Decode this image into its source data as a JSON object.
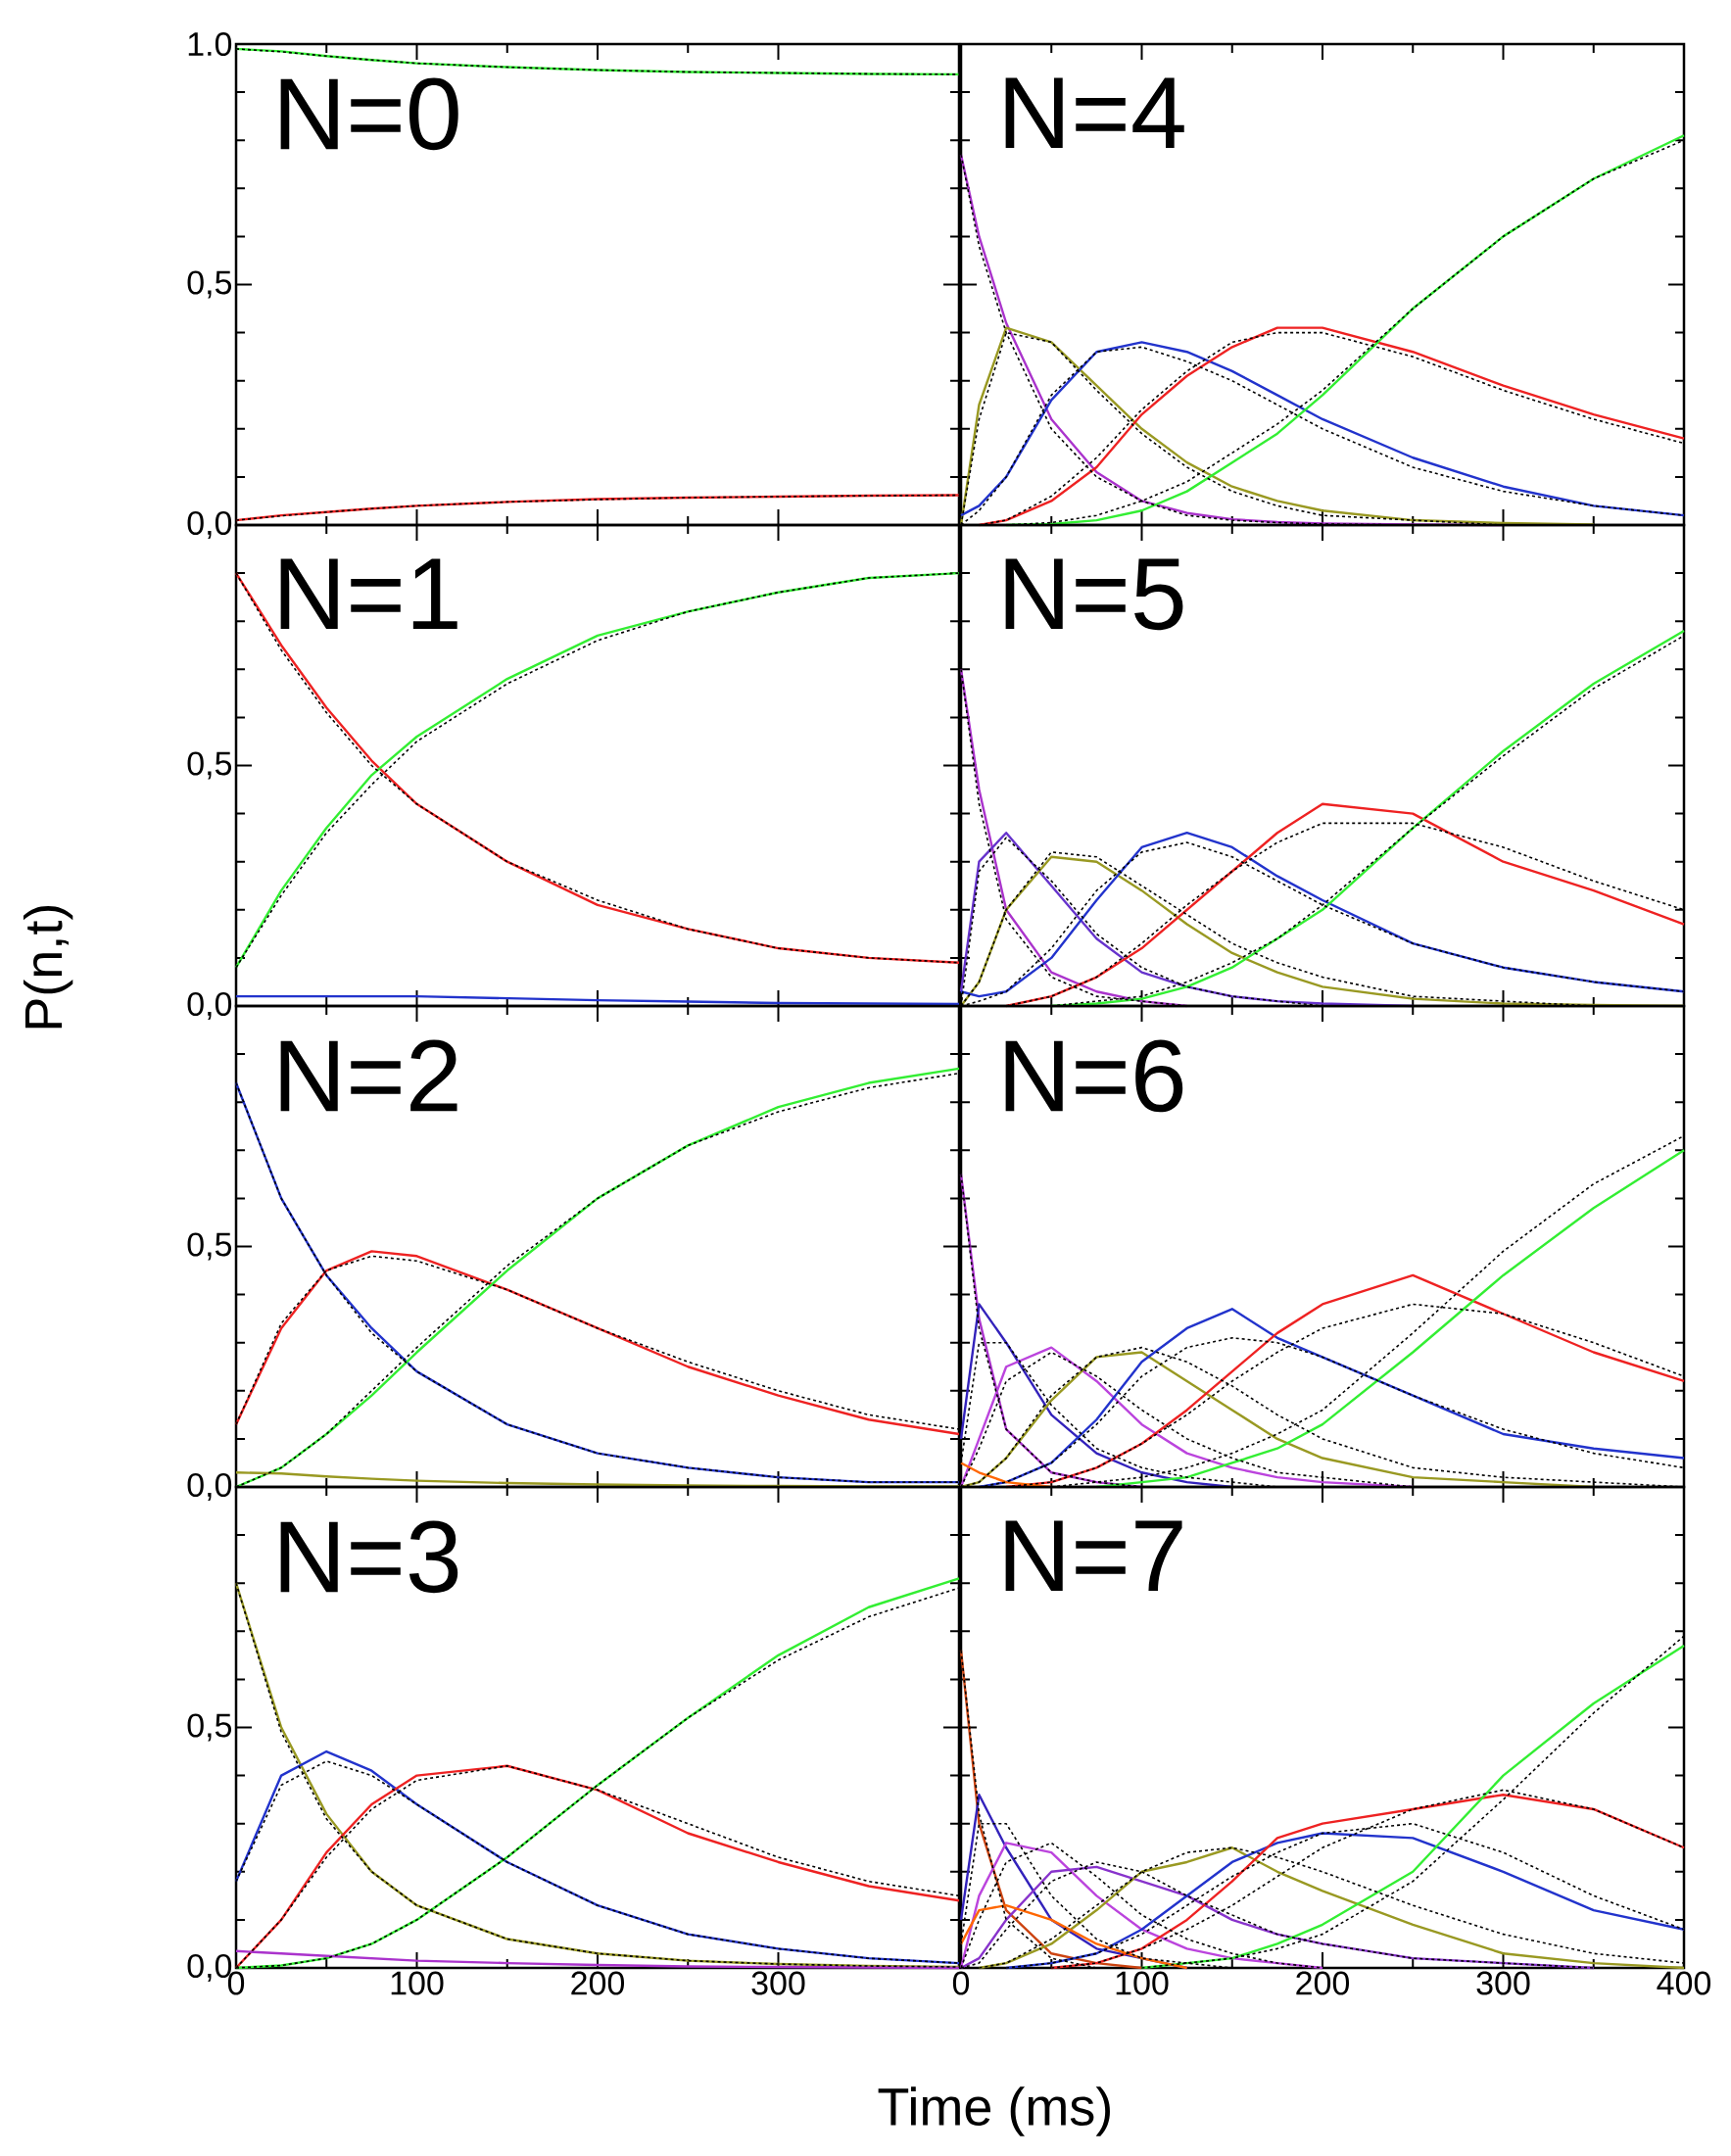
{
  "chart_data": [
    {
      "type": "line",
      "annotations": [
        "N=0"
      ],
      "x": [
        0,
        25,
        50,
        75,
        100,
        150,
        200,
        250,
        300,
        350,
        400
      ],
      "xlim": [
        0,
        400
      ],
      "ylim": [
        0,
        1
      ],
      "xticks": [
        0,
        100,
        200,
        300
      ],
      "yticks": [
        {
          "value": 0,
          "label": "0,0"
        },
        {
          "value": 0.5,
          "label": "0,5"
        },
        {
          "value": 1,
          "label": "1.0"
        }
      ],
      "tick_labels": "y",
      "series": [
        {
          "color": "#33ee33",
          "values": [
            0.99,
            0.985,
            0.975,
            0.967,
            0.96,
            0.952,
            0.946,
            0.942,
            0.94,
            0.938,
            0.937
          ]
        },
        {
          "color": "#ee2222",
          "values": [
            0.01,
            0.02,
            0.027,
            0.034,
            0.04,
            0.048,
            0.054,
            0.057,
            0.059,
            0.061,
            0.062
          ]
        },
        {
          "color": "#000000",
          "line_style": "dashed",
          "values": [
            0.99,
            0.984,
            0.975,
            0.967,
            0.96,
            0.952,
            0.946,
            0.942,
            0.94,
            0.938,
            0.937
          ]
        },
        {
          "color": "#000000",
          "line_style": "dashed",
          "values": [
            0.01,
            0.019,
            0.027,
            0.034,
            0.04,
            0.048,
            0.053,
            0.057,
            0.059,
            0.061,
            0.062
          ]
        }
      ]
    },
    {
      "type": "line",
      "annotations": [
        "N=4"
      ],
      "x": [
        0,
        10,
        25,
        50,
        75,
        100,
        125,
        150,
        175,
        200,
        250,
        300,
        350,
        400
      ],
      "xlim": [
        0,
        400
      ],
      "ylim": [
        0,
        1
      ],
      "xticks": [
        0,
        100,
        200,
        300,
        400
      ],
      "yticks": [
        {
          "value": 0,
          "label": null
        },
        {
          "value": 0.5,
          "label": null
        },
        {
          "value": 1,
          "label": null
        }
      ],
      "tick_labels": false,
      "series": [
        {
          "color": "#aa33cc",
          "values": [
            0.77,
            0.6,
            0.42,
            0.22,
            0.11,
            0.05,
            0.025,
            0.012,
            0.006,
            0.003,
            0.001,
            0,
            null,
            null
          ]
        },
        {
          "color": "#999922",
          "values": [
            0,
            0.25,
            0.41,
            0.38,
            0.29,
            0.2,
            0.13,
            0.08,
            0.05,
            0.03,
            0.01,
            0.004,
            0.001,
            null
          ]
        },
        {
          "color": "#2233cc",
          "values": [
            0.02,
            0.04,
            0.1,
            0.26,
            0.36,
            0.38,
            0.36,
            0.32,
            0.27,
            0.22,
            0.14,
            0.08,
            0.04,
            0.02
          ]
        },
        {
          "color": "#ee2222",
          "values": [
            null,
            0,
            0.01,
            0.05,
            0.12,
            0.23,
            0.31,
            0.37,
            0.41,
            0.41,
            0.36,
            0.29,
            0.23,
            0.18
          ]
        },
        {
          "color": "#33ee33",
          "values": [
            null,
            null,
            0,
            0.002,
            0.01,
            0.03,
            0.07,
            0.13,
            0.19,
            0.27,
            0.45,
            0.6,
            0.72,
            0.81
          ]
        },
        {
          "color": "#000000",
          "line_style": "dashed",
          "values": [
            0.77,
            0.58,
            0.4,
            0.2,
            0.1,
            0.05,
            0.02,
            0.01,
            0.005,
            0.002,
            0,
            null,
            null,
            null
          ]
        },
        {
          "color": "#000000",
          "line_style": "dashed",
          "values": [
            0,
            0.22,
            0.4,
            0.38,
            0.28,
            0.19,
            0.12,
            0.07,
            0.04,
            0.02,
            0.01,
            0,
            null,
            null
          ]
        },
        {
          "color": "#000000",
          "line_style": "dashed",
          "values": [
            0,
            0.03,
            0.1,
            0.27,
            0.36,
            0.37,
            0.34,
            0.3,
            0.25,
            0.2,
            0.12,
            0.07,
            0.04,
            0.02
          ]
        },
        {
          "color": "#000000",
          "line_style": "dashed",
          "values": [
            null,
            0,
            0.01,
            0.06,
            0.14,
            0.24,
            0.32,
            0.38,
            0.4,
            0.4,
            0.35,
            0.28,
            0.22,
            0.17
          ]
        },
        {
          "color": "#000000",
          "line_style": "dashed",
          "values": [
            null,
            null,
            0,
            0.005,
            0.02,
            0.05,
            0.09,
            0.15,
            0.21,
            0.28,
            0.45,
            0.6,
            0.72,
            0.8
          ]
        }
      ]
    },
    {
      "type": "line",
      "annotations": [
        "N=1"
      ],
      "x": [
        0,
        25,
        50,
        75,
        100,
        150,
        200,
        250,
        300,
        350,
        400
      ],
      "xlim": [
        0,
        400
      ],
      "ylim": [
        0,
        1
      ],
      "xticks": [
        0,
        100,
        200,
        300
      ],
      "yticks": [
        {
          "value": 0,
          "label": "0,0"
        },
        {
          "value": 0.5,
          "label": "0,5"
        },
        {
          "value": 1,
          "label": null
        }
      ],
      "tick_labels": "y",
      "ylabel": "P(n,t)",
      "series": [
        {
          "color": "#ee2222",
          "values": [
            0.9,
            0.75,
            0.62,
            0.51,
            0.42,
            0.3,
            0.21,
            0.16,
            0.12,
            0.1,
            0.09
          ]
        },
        {
          "color": "#33ee33",
          "values": [
            0.08,
            0.24,
            0.37,
            0.48,
            0.56,
            0.68,
            0.77,
            0.82,
            0.86,
            0.89,
            0.9
          ]
        },
        {
          "color": "#2233cc",
          "values": [
            0.02,
            0.02,
            0.02,
            0.02,
            0.02,
            0.016,
            0.012,
            0.009,
            0.006,
            0.005,
            0.004
          ]
        },
        {
          "color": "#000000",
          "line_style": "dashed",
          "values": [
            0.9,
            0.74,
            0.61,
            0.5,
            0.42,
            0.3,
            0.22,
            0.16,
            0.12,
            0.1,
            0.09
          ]
        },
        {
          "color": "#000000",
          "line_style": "dashed",
          "values": [
            0.08,
            0.23,
            0.36,
            0.46,
            0.55,
            0.67,
            0.76,
            0.82,
            0.86,
            0.89,
            0.9
          ]
        }
      ]
    },
    {
      "type": "line",
      "annotations": [
        "N=5"
      ],
      "x": [
        0,
        10,
        25,
        50,
        75,
        100,
        125,
        150,
        175,
        200,
        250,
        300,
        350,
        400
      ],
      "xlim": [
        0,
        400
      ],
      "ylim": [
        0,
        1
      ],
      "xticks": [
        0,
        100,
        200,
        300,
        400
      ],
      "yticks": [
        {
          "value": 0,
          "label": null
        },
        {
          "value": 0.5,
          "label": null
        },
        {
          "value": 1,
          "label": null
        }
      ],
      "tick_labels": false,
      "series": [
        {
          "color": "#aa33cc",
          "values": [
            0.7,
            0.45,
            0.2,
            0.07,
            0.03,
            0.01,
            0,
            null,
            null,
            null,
            null,
            null,
            null,
            null
          ]
        },
        {
          "color": "#6633cc",
          "values": [
            0.03,
            0.3,
            0.36,
            0.25,
            0.14,
            0.07,
            0.04,
            0.02,
            0.01,
            0.005,
            0,
            null,
            null,
            null
          ]
        },
        {
          "color": "#999922",
          "values": [
            0,
            0.05,
            0.2,
            0.31,
            0.3,
            0.24,
            0.17,
            0.11,
            0.07,
            0.04,
            0.015,
            0.005,
            0.002,
            0
          ]
        },
        {
          "color": "#2233cc",
          "values": [
            0.03,
            0.02,
            0.03,
            0.1,
            0.22,
            0.33,
            0.36,
            0.33,
            0.27,
            0.22,
            0.13,
            0.08,
            0.05,
            0.03
          ]
        },
        {
          "color": "#ee2222",
          "values": [
            null,
            null,
            0,
            0.02,
            0.06,
            0.12,
            0.2,
            0.28,
            0.36,
            0.42,
            0.4,
            0.3,
            0.24,
            0.17
          ]
        },
        {
          "color": "#33ee33",
          "values": [
            null,
            null,
            null,
            0,
            0.005,
            0.015,
            0.04,
            0.08,
            0.14,
            0.2,
            0.37,
            0.53,
            0.67,
            0.78
          ]
        },
        {
          "color": "#000000",
          "line_style": "dashed",
          "values": [
            0.7,
            0.42,
            0.18,
            0.06,
            0.02,
            0.01,
            0,
            null,
            null,
            null,
            null,
            null,
            null,
            null
          ]
        },
        {
          "color": "#000000",
          "line_style": "dashed",
          "values": [
            0,
            0.28,
            0.35,
            0.26,
            0.15,
            0.08,
            0.04,
            0.02,
            0.01,
            0,
            null,
            null,
            null,
            null
          ]
        },
        {
          "color": "#000000",
          "line_style": "dashed",
          "values": [
            0,
            0.05,
            0.2,
            0.32,
            0.31,
            0.25,
            0.19,
            0.13,
            0.09,
            0.06,
            0.02,
            0.01,
            0,
            null
          ]
        },
        {
          "color": "#000000",
          "line_style": "dashed",
          "values": [
            0,
            0.01,
            0.03,
            0.12,
            0.24,
            0.32,
            0.34,
            0.31,
            0.26,
            0.21,
            0.13,
            0.08,
            0.05,
            0.03
          ]
        },
        {
          "color": "#000000",
          "line_style": "dashed",
          "values": [
            null,
            null,
            0,
            0.02,
            0.06,
            0.13,
            0.21,
            0.28,
            0.34,
            0.38,
            0.38,
            0.33,
            0.26,
            0.2
          ]
        },
        {
          "color": "#000000",
          "line_style": "dashed",
          "values": [
            null,
            null,
            null,
            0,
            0.01,
            0.02,
            0.05,
            0.09,
            0.14,
            0.21,
            0.37,
            0.52,
            0.66,
            0.77
          ]
        }
      ]
    },
    {
      "type": "line",
      "annotations": [
        "N=2"
      ],
      "x": [
        0,
        25,
        50,
        75,
        100,
        150,
        200,
        250,
        300,
        350,
        400
      ],
      "xlim": [
        0,
        400
      ],
      "ylim": [
        0,
        1
      ],
      "xticks": [
        0,
        100,
        200,
        300
      ],
      "yticks": [
        {
          "value": 0,
          "label": "0,0"
        },
        {
          "value": 0.5,
          "label": "0,5"
        },
        {
          "value": 1,
          "label": null
        }
      ],
      "tick_labels": "y",
      "series": [
        {
          "color": "#2233cc",
          "values": [
            0.84,
            0.6,
            0.44,
            0.33,
            0.24,
            0.13,
            0.07,
            0.04,
            0.02,
            0.01,
            0.01
          ]
        },
        {
          "color": "#ee2222",
          "values": [
            0.13,
            0.33,
            0.45,
            0.49,
            0.48,
            0.41,
            0.33,
            0.25,
            0.19,
            0.14,
            0.11
          ]
        },
        {
          "color": "#33ee33",
          "values": [
            0,
            0.04,
            0.11,
            0.19,
            0.28,
            0.45,
            0.6,
            0.71,
            0.79,
            0.84,
            0.87
          ]
        },
        {
          "color": "#999922",
          "values": [
            0.03,
            0.028,
            0.022,
            0.017,
            0.013,
            0.008,
            0.005,
            0.003,
            0.002,
            0.001,
            0.001
          ]
        },
        {
          "color": "#000000",
          "line_style": "dashed",
          "values": [
            0.84,
            0.6,
            0.44,
            0.32,
            0.24,
            0.13,
            0.07,
            0.04,
            0.02,
            0.01,
            0.01
          ]
        },
        {
          "color": "#000000",
          "line_style": "dashed",
          "values": [
            0.13,
            0.34,
            0.45,
            0.48,
            0.47,
            0.41,
            0.33,
            0.26,
            0.2,
            0.15,
            0.12
          ]
        },
        {
          "color": "#000000",
          "line_style": "dashed",
          "values": [
            0,
            0.04,
            0.11,
            0.2,
            0.29,
            0.46,
            0.6,
            0.71,
            0.78,
            0.83,
            0.86
          ]
        }
      ]
    },
    {
      "type": "line",
      "annotations": [
        "N=6"
      ],
      "x": [
        0,
        10,
        25,
        50,
        75,
        100,
        125,
        150,
        175,
        200,
        250,
        300,
        350,
        400
      ],
      "xlim": [
        0,
        400
      ],
      "ylim": [
        0,
        1
      ],
      "xticks": [
        0,
        100,
        200,
        300,
        400
      ],
      "yticks": [
        {
          "value": 0,
          "label": null
        },
        {
          "value": 0.5,
          "label": null
        },
        {
          "value": 1,
          "label": null
        }
      ],
      "tick_labels": false,
      "series": [
        {
          "color": "#aa33cc",
          "values": [
            0.65,
            0.35,
            0.12,
            0.03,
            0.01,
            0,
            null,
            null,
            null,
            null,
            null,
            null,
            null,
            null
          ]
        },
        {
          "color": "#3322bb",
          "values": [
            0.1,
            0.38,
            0.3,
            0.15,
            0.07,
            0.03,
            0.01,
            0,
            null,
            null,
            null,
            null,
            null,
            null
          ]
        },
        {
          "color": "#bb44dd",
          "values": [
            0,
            0.1,
            0.25,
            0.29,
            0.22,
            0.13,
            0.07,
            0.04,
            0.02,
            0.01,
            0,
            null,
            null,
            null
          ]
        },
        {
          "color": "#999922",
          "values": [
            0,
            0.01,
            0.06,
            0.18,
            0.27,
            0.28,
            0.22,
            0.16,
            0.1,
            0.06,
            0.02,
            0.01,
            0,
            null
          ]
        },
        {
          "color": "#2233cc",
          "values": [
            null,
            0,
            0.01,
            0.05,
            0.14,
            0.26,
            0.33,
            0.37,
            0.31,
            0.27,
            0.19,
            0.11,
            0.08,
            0.06
          ]
        },
        {
          "color": "#ee2222",
          "values": [
            null,
            null,
            0,
            0.01,
            0.04,
            0.09,
            0.16,
            0.24,
            0.32,
            0.38,
            0.44,
            0.36,
            0.28,
            0.22
          ]
        },
        {
          "color": "#33ee33",
          "values": [
            null,
            null,
            null,
            null,
            0,
            0.01,
            0.02,
            0.05,
            0.08,
            0.13,
            0.28,
            0.44,
            0.58,
            0.7
          ]
        },
        {
          "color": "#ff6600",
          "values": [
            0.05,
            0.03,
            0.01,
            0,
            null,
            null,
            null,
            null,
            null,
            null,
            null,
            null,
            null,
            null
          ]
        },
        {
          "color": "#000000",
          "line_style": "dashed",
          "values": [
            0.65,
            0.33,
            0.12,
            0.03,
            0.01,
            0,
            null,
            null,
            null,
            null,
            null,
            null,
            null,
            null
          ]
        },
        {
          "color": "#000000",
          "line_style": "dashed",
          "values": [
            0.05,
            0.3,
            0.3,
            0.17,
            0.08,
            0.04,
            0.02,
            0.01,
            0,
            null,
            null,
            null,
            null,
            null
          ]
        },
        {
          "color": "#000000",
          "line_style": "dashed",
          "values": [
            0,
            0.08,
            0.22,
            0.28,
            0.23,
            0.16,
            0.1,
            0.06,
            0.03,
            0.02,
            0,
            null,
            null,
            null
          ]
        },
        {
          "color": "#000000",
          "line_style": "dashed",
          "values": [
            0,
            0.01,
            0.06,
            0.19,
            0.27,
            0.29,
            0.26,
            0.21,
            0.15,
            0.1,
            0.04,
            0.02,
            0.01,
            0
          ]
        },
        {
          "color": "#000000",
          "line_style": "dashed",
          "values": [
            null,
            0,
            0.01,
            0.05,
            0.13,
            0.23,
            0.29,
            0.31,
            0.3,
            0.27,
            0.19,
            0.12,
            0.07,
            0.04
          ]
        },
        {
          "color": "#000000",
          "line_style": "dashed",
          "values": [
            null,
            null,
            0,
            0.01,
            0.04,
            0.09,
            0.15,
            0.22,
            0.28,
            0.33,
            0.38,
            0.36,
            0.3,
            0.23
          ]
        },
        {
          "color": "#000000",
          "line_style": "dashed",
          "values": [
            null,
            null,
            null,
            0,
            0.01,
            0.02,
            0.04,
            0.07,
            0.11,
            0.16,
            0.32,
            0.49,
            0.63,
            0.73
          ]
        }
      ]
    },
    {
      "type": "line",
      "annotations": [
        "N=3"
      ],
      "x": [
        0,
        25,
        50,
        75,
        100,
        150,
        200,
        250,
        300,
        350,
        400
      ],
      "xlim": [
        0,
        400
      ],
      "ylim": [
        0,
        1
      ],
      "xticks": [
        0,
        100,
        200,
        300
      ],
      "yticks": [
        {
          "value": 0,
          "label": "0,0"
        },
        {
          "value": 0.5,
          "label": "0,5"
        },
        {
          "value": 1,
          "label": null
        }
      ],
      "xlabel": "Time (ms)",
      "series": [
        {
          "color": "#999922",
          "values": [
            0.8,
            0.5,
            0.32,
            0.2,
            0.13,
            0.06,
            0.03,
            0.015,
            0.008,
            0.004,
            0.002
          ]
        },
        {
          "color": "#2233cc",
          "values": [
            0.18,
            0.4,
            0.45,
            0.41,
            0.34,
            0.22,
            0.13,
            0.07,
            0.04,
            0.02,
            0.01
          ]
        },
        {
          "color": "#ee2222",
          "values": [
            0,
            0.1,
            0.24,
            0.34,
            0.4,
            0.42,
            0.37,
            0.28,
            0.22,
            0.17,
            0.14
          ]
        },
        {
          "color": "#33ee33",
          "values": [
            0,
            0.005,
            0.02,
            0.05,
            0.1,
            0.23,
            0.38,
            0.52,
            0.65,
            0.75,
            0.81
          ]
        },
        {
          "color": "#aa33cc",
          "values": [
            0.035,
            0.03,
            0.025,
            0.02,
            0.015,
            0.01,
            0.006,
            0.003,
            0.002,
            0.001,
            0
          ]
        },
        {
          "color": "#000000",
          "line_style": "dashed",
          "values": [
            0.8,
            0.49,
            0.31,
            0.2,
            0.13,
            0.06,
            0.03,
            0.015,
            0.008,
            0.004,
            0.002
          ]
        },
        {
          "color": "#000000",
          "line_style": "dashed",
          "values": [
            0.18,
            0.38,
            0.43,
            0.4,
            0.34,
            0.22,
            0.13,
            0.07,
            0.04,
            0.02,
            0.01
          ]
        },
        {
          "color": "#000000",
          "line_style": "dashed",
          "values": [
            0,
            0.1,
            0.23,
            0.33,
            0.39,
            0.42,
            0.37,
            0.3,
            0.23,
            0.18,
            0.15
          ]
        },
        {
          "color": "#000000",
          "line_style": "dashed",
          "values": [
            0,
            0.005,
            0.02,
            0.05,
            0.1,
            0.23,
            0.38,
            0.52,
            0.64,
            0.73,
            0.79
          ]
        }
      ]
    },
    {
      "type": "line",
      "annotations": [
        "N=7"
      ],
      "x": [
        0,
        10,
        25,
        50,
        75,
        100,
        125,
        150,
        175,
        200,
        250,
        300,
        350,
        400
      ],
      "xlim": [
        0,
        400
      ],
      "ylim": [
        0,
        1
      ],
      "xticks": [
        0,
        100,
        200,
        300,
        400
      ],
      "yticks": [
        {
          "value": 0,
          "label": null
        },
        {
          "value": 0.5,
          "label": null
        },
        {
          "value": 1,
          "label": null
        }
      ],
      "tick_labels": "x",
      "series": [
        {
          "color": "#cc4411",
          "values": [
            0.66,
            0.3,
            0.12,
            0.03,
            0.01,
            0,
            null,
            null,
            null,
            null,
            null,
            null,
            null,
            null
          ]
        },
        {
          "color": "#3322bb",
          "values": [
            0.1,
            0.36,
            0.25,
            0.1,
            0.04,
            0.02,
            0,
            null,
            null,
            null,
            null,
            null,
            null,
            null
          ]
        },
        {
          "color": "#bb44dd",
          "values": [
            0,
            0.15,
            0.26,
            0.24,
            0.15,
            0.08,
            0.04,
            0.02,
            0.01,
            0,
            null,
            null,
            null,
            null
          ]
        },
        {
          "color": "#8833cc",
          "values": [
            0,
            0.02,
            0.1,
            0.2,
            0.21,
            0.18,
            0.15,
            0.1,
            0.07,
            0.05,
            0.02,
            0.01,
            0,
            null
          ]
        },
        {
          "color": "#999922",
          "values": [
            null,
            0,
            0.01,
            0.05,
            0.12,
            0.2,
            0.22,
            0.25,
            0.2,
            0.16,
            0.09,
            0.03,
            0.01,
            0
          ]
        },
        {
          "color": "#2233cc",
          "values": [
            null,
            null,
            0,
            0.01,
            0.03,
            0.08,
            0.15,
            0.22,
            0.26,
            0.28,
            0.27,
            0.2,
            0.12,
            0.08
          ]
        },
        {
          "color": "#ee2222",
          "values": [
            null,
            null,
            null,
            0,
            0.01,
            0.04,
            0.1,
            0.18,
            0.27,
            0.3,
            0.33,
            0.36,
            0.33,
            0.25
          ]
        },
        {
          "color": "#33ee33",
          "values": [
            null,
            null,
            null,
            null,
            null,
            0,
            0.01,
            0.02,
            0.05,
            0.09,
            0.2,
            0.4,
            0.55,
            0.67
          ]
        },
        {
          "color": "#ff6600",
          "values": [
            0.05,
            0.12,
            0.13,
            0.1,
            0.05,
            0.02,
            0,
            null,
            null,
            null,
            null,
            null,
            null,
            null
          ]
        },
        {
          "color": "#000000",
          "line_style": "dashed",
          "values": [
            0.66,
            0.32,
            0.1,
            0.02,
            0,
            null,
            null,
            null,
            null,
            null,
            null,
            null,
            null,
            null
          ]
        },
        {
          "color": "#000000",
          "line_style": "dashed",
          "values": [
            0.05,
            0.3,
            0.3,
            0.15,
            0.06,
            0.02,
            0.01,
            0,
            null,
            null,
            null,
            null,
            null,
            null
          ]
        },
        {
          "color": "#000000",
          "line_style": "dashed",
          "values": [
            0,
            0.1,
            0.22,
            0.26,
            0.19,
            0.11,
            0.06,
            0.03,
            0.01,
            0,
            null,
            null,
            null,
            null
          ]
        },
        {
          "color": "#000000",
          "line_style": "dashed",
          "values": [
            0,
            0.01,
            0.08,
            0.18,
            0.22,
            0.2,
            0.15,
            0.11,
            0.07,
            0.05,
            0.02,
            0.01,
            0,
            null
          ]
        },
        {
          "color": "#000000",
          "line_style": "dashed",
          "values": [
            null,
            0,
            0.01,
            0.06,
            0.13,
            0.2,
            0.24,
            0.25,
            0.23,
            0.2,
            0.13,
            0.07,
            0.03,
            0.01
          ]
        },
        {
          "color": "#000000",
          "line_style": "dashed",
          "values": [
            null,
            null,
            0,
            0.01,
            0.03,
            0.07,
            0.13,
            0.19,
            0.24,
            0.28,
            0.3,
            0.24,
            0.15,
            0.08
          ]
        },
        {
          "color": "#000000",
          "line_style": "dashed",
          "values": [
            null,
            null,
            null,
            0,
            0.01,
            0.04,
            0.08,
            0.13,
            0.19,
            0.25,
            0.33,
            0.37,
            0.33,
            0.25
          ]
        },
        {
          "color": "#000000",
          "line_style": "dashed",
          "values": [
            null,
            null,
            null,
            null,
            null,
            0,
            0.01,
            0.02,
            0.04,
            0.07,
            0.18,
            0.35,
            0.53,
            0.69
          ]
        }
      ]
    }
  ]
}
